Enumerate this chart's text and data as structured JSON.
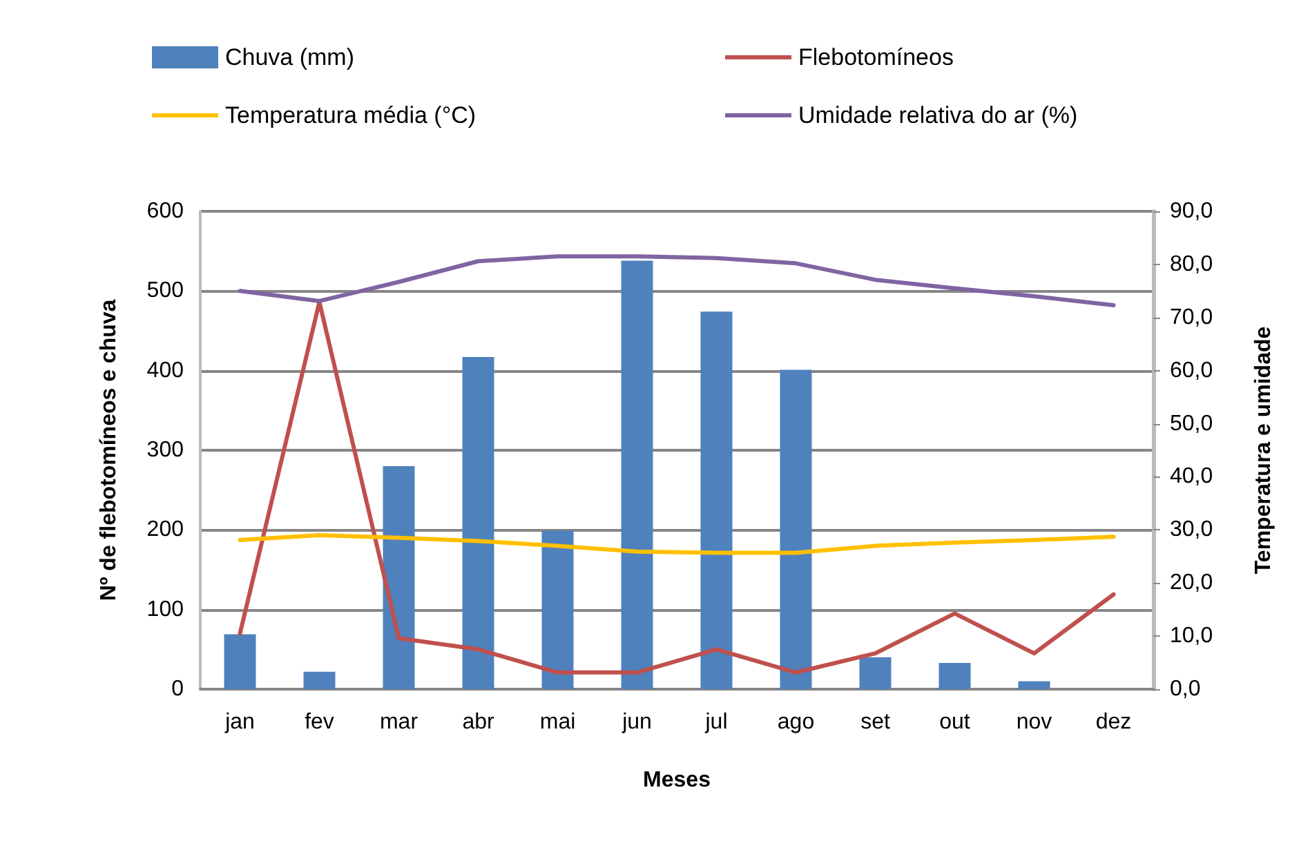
{
  "chart_data": {
    "type": "bar",
    "xlabel": "Meses",
    "ylabel": "Nº de flebotomíneos e chuva",
    "y2label": "Temperatura e umidade",
    "categories": [
      "jan",
      "fev",
      "mar",
      "abr",
      "mai",
      "jun",
      "jul",
      "ago",
      "set",
      "out",
      "nov",
      "dez"
    ],
    "series": [
      {
        "name": "Chuva (mm)",
        "color": "#4f81bd",
        "values": [
          69,
          22,
          280,
          417,
          199,
          538,
          474,
          401,
          40,
          33,
          10,
          0
        ]
      },
      {
        "name": "Flebotomíneos",
        "type": "line",
        "color": "#c0504d",
        "values": [
          70,
          486,
          64,
          50,
          21,
          21,
          50,
          21,
          45,
          95,
          45,
          119
        ]
      },
      {
        "name": "Temperatura média (°C)",
        "type": "line",
        "axis": "y2",
        "color": "#ffc000",
        "values": [
          28.1,
          29.0,
          28.5,
          27.9,
          27.0,
          25.9,
          25.7,
          25.7,
          27.0,
          27.6,
          28.1,
          28.7
        ]
      },
      {
        "name": "Umidade relativa do ar (%)",
        "type": "line",
        "axis": "y2",
        "color": "#8064a2",
        "values": [
          75.0,
          73.1,
          76.7,
          80.6,
          81.5,
          81.5,
          81.2,
          80.2,
          77.1,
          75.5,
          74.0,
          72.3
        ]
      }
    ],
    "ylim": [
      0,
      600
    ],
    "yticks": [
      0,
      100,
      200,
      300,
      400,
      500,
      600
    ],
    "y2lim": [
      0,
      90
    ],
    "y2ticks": [
      {
        "value": 0,
        "label": "0,0"
      },
      {
        "value": 10,
        "label": "10,0"
      },
      {
        "value": 20,
        "label": "20,0"
      },
      {
        "value": 30,
        "label": "30,0"
      },
      {
        "value": 40,
        "label": "40,0"
      },
      {
        "value": 50,
        "label": "50,0"
      },
      {
        "value": 60,
        "label": "60,0"
      },
      {
        "value": 70,
        "label": "70,0"
      },
      {
        "value": 80,
        "label": "80,0"
      },
      {
        "value": 90,
        "label": "90,0"
      }
    ],
    "grid": "y",
    "legend": "top",
    "marker": "none",
    "line_style": "solid"
  }
}
